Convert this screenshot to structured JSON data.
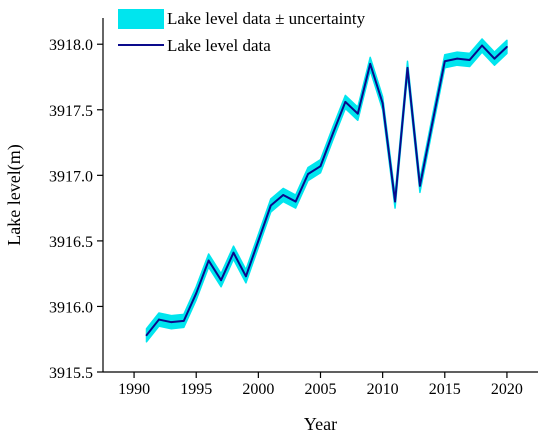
{
  "chart_data": {
    "type": "line",
    "xlabel": "Year",
    "ylabel": "Lake level(m)",
    "xlim": [
      1987.5,
      2022.5
    ],
    "ylim": [
      3915.5,
      3918.2
    ],
    "xticks": [
      1990,
      1995,
      2000,
      2005,
      2010,
      2015,
      2020
    ],
    "yticks": [
      3915.5,
      3916.0,
      3916.5,
      3917.0,
      3917.5,
      3918.0
    ],
    "xtick_labels": [
      "1990",
      "1995",
      "2000",
      "2005",
      "2010",
      "2015",
      "2020"
    ],
    "ytick_labels": [
      "3915.5",
      "3916.0",
      "3916.5",
      "3917.0",
      "3917.5",
      "3918.0"
    ],
    "grid": false,
    "legend_position": "top-left",
    "legend": [
      {
        "label": "Lake level data ± uncertainty",
        "kind": "band",
        "color": "#00E5EE"
      },
      {
        "label": "Lake level data",
        "kind": "line",
        "color": "#0A0A8C"
      }
    ],
    "series": [
      {
        "name": "Lake level data",
        "color": "#0A0A8C",
        "band_color": "#00E5EE",
        "uncertainty": 0.05,
        "x": [
          1991,
          1992,
          1993,
          1994,
          1995,
          1996,
          1997,
          1998,
          1999,
          2000,
          2001,
          2002,
          2003,
          2004,
          2005,
          2006,
          2007,
          2008,
          2009,
          2010,
          2011,
          2012,
          2013,
          2014,
          2015,
          2016,
          2017,
          2018,
          2019,
          2020
        ],
        "y": [
          3915.78,
          3915.9,
          3915.88,
          3915.89,
          3916.1,
          3916.35,
          3916.2,
          3916.41,
          3916.23,
          3916.5,
          3916.77,
          3916.85,
          3916.8,
          3917.01,
          3917.07,
          3917.32,
          3917.56,
          3917.47,
          3917.85,
          3917.55,
          3916.8,
          3917.82,
          3916.92,
          3917.4,
          3917.87,
          3917.89,
          3917.88,
          3917.99,
          3917.89,
          3917.98
        ]
      }
    ]
  }
}
